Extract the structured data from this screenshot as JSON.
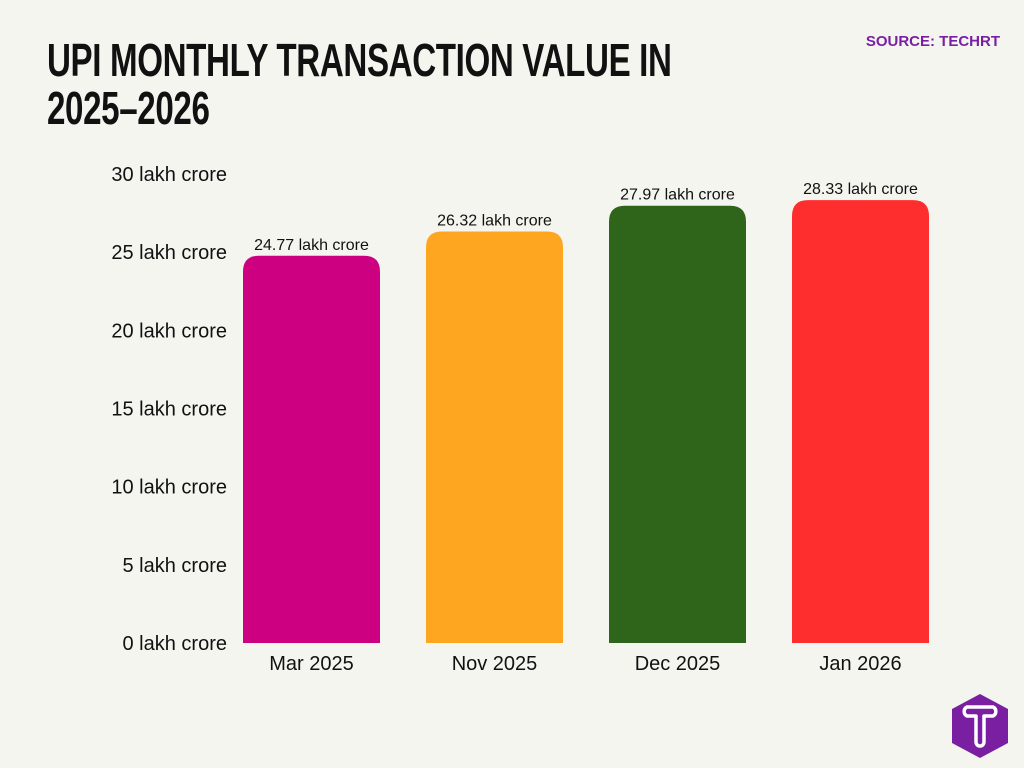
{
  "header": {
    "title_line1": "UPI MONTHLY TRANSACTION VALUE IN",
    "title_line2": "2025–2026",
    "source": "SOURCE: TECHRT"
  },
  "chart_data": {
    "type": "bar",
    "title": "UPI MONTHLY TRANSACTION VALUE IN 2025–2026",
    "categories": [
      "Mar 2025",
      "Nov 2025",
      "Dec 2025",
      "Jan 2026"
    ],
    "values": [
      24.77,
      26.32,
      27.97,
      28.33
    ],
    "data_labels": [
      "24.77 lakh crore",
      "26.32 lakh crore",
      "27.97 lakh crore",
      "28.33 lakh crore"
    ],
    "colors": [
      "#cc0080",
      "#ffa621",
      "#2e651b",
      "#ff2e2e"
    ],
    "unit": "lakh crore",
    "ylim": [
      0,
      30
    ],
    "yticks": [
      0,
      5,
      10,
      15,
      20,
      25,
      30
    ],
    "ytick_labels": [
      "0 lakh crore",
      "5 lakh crore",
      "10 lakh crore",
      "15 lakh crore",
      "20 lakh crore",
      "25 lakh crore",
      "30 lakh crore"
    ],
    "grid": false,
    "legend": "none"
  },
  "logo": {
    "text": "T",
    "color": "#7b1fa2",
    "icon": "techrt-logo-icon"
  }
}
